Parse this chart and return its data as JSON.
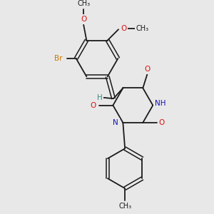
{
  "background_color": "#e8e8e8",
  "bond_color": "#1a1a1a",
  "atom_colors": {
    "O": "#dd1111",
    "N": "#1111bb",
    "Br": "#cc7700",
    "H": "#3a8888",
    "C": "#1a1a1a"
  },
  "figsize": [
    3.0,
    3.0
  ],
  "dpi": 100,
  "xlim": [
    -1.0,
    9.0
  ],
  "ylim": [
    0.0,
    10.5
  ]
}
